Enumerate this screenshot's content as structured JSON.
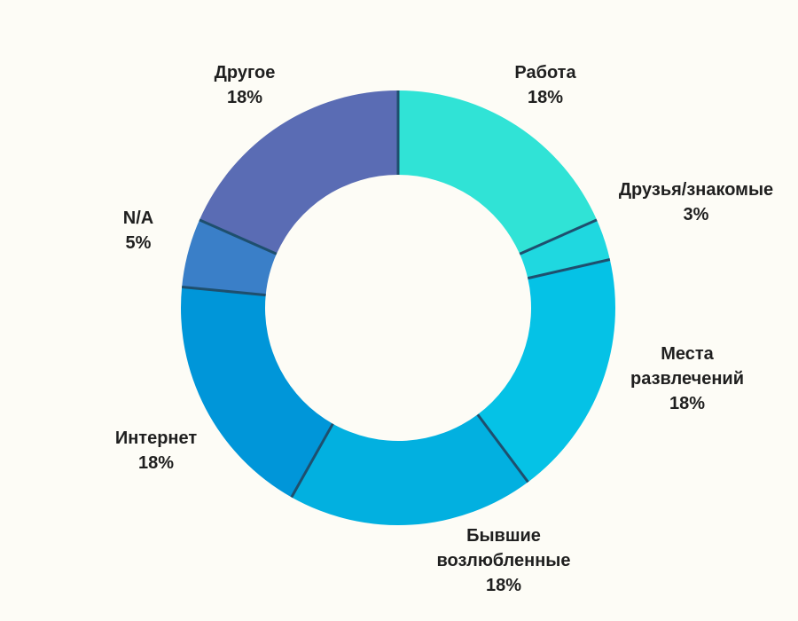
{
  "chart_data": {
    "type": "pie",
    "donut": true,
    "legend": "none",
    "series": [
      {
        "slices": [
          {
            "label": [
              "Работа"
            ],
            "value_label": "18%",
            "value": 18,
            "color": "#30e3d6"
          },
          {
            "label": [
              "Друзья/знакомые"
            ],
            "value_label": "3%",
            "value": 3,
            "color": "#1fd8e0"
          },
          {
            "label": [
              "Места",
              "развлечений"
            ],
            "value_label": "18%",
            "value": 18,
            "color": "#05c2e6"
          },
          {
            "label": [
              "Бывшие",
              "возлюбленные"
            ],
            "value_label": "18%",
            "value": 18,
            "color": "#02b0e0"
          },
          {
            "label": [
              "Интернет"
            ],
            "value_label": "18%",
            "value": 18,
            "color": "#0096d9"
          },
          {
            "label": [
              "N/A"
            ],
            "value_label": "5%",
            "value": 5,
            "color": "#3a7fc8"
          },
          {
            "label": [
              "Другое"
            ],
            "value_label": "18%",
            "value": 18,
            "color": "#5a6cb4"
          }
        ]
      }
    ],
    "separator_color": "#1e4f6e",
    "background": "#fdfcf6"
  }
}
